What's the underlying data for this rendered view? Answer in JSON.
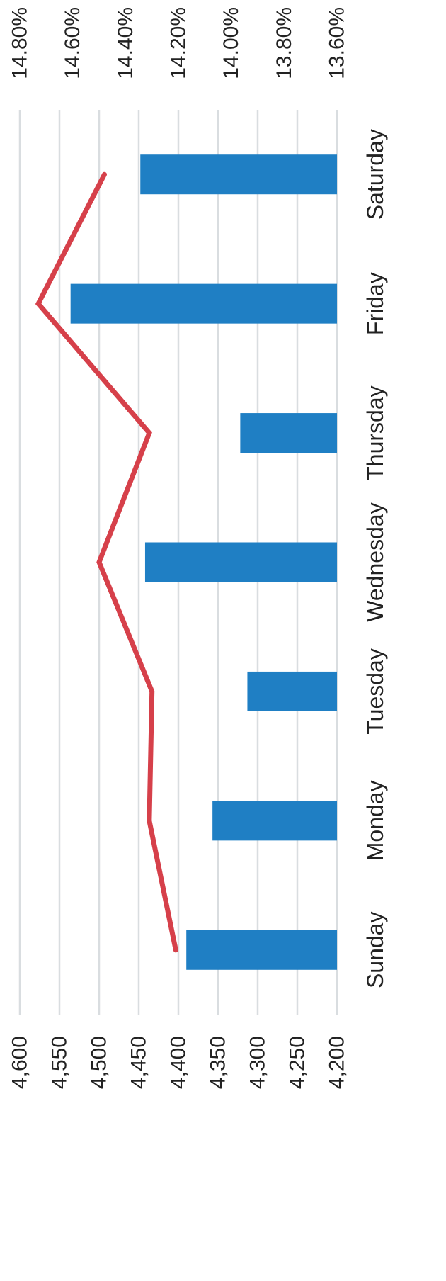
{
  "chart_data": {
    "type": "bar",
    "orientation": "rotated-90-clockwise",
    "categories": [
      "Sunday",
      "Monday",
      "Tuesday",
      "Wednesday",
      "Thursday",
      "Friday",
      "Saturday"
    ],
    "series": [
      {
        "kind": "bar",
        "axis": "primary",
        "color": "#1f7fc4",
        "values": [
          4390,
          4357,
          4313,
          4442,
          4322,
          4536,
          4448
        ]
      },
      {
        "kind": "line",
        "axis": "secondary",
        "color": "#d6404a",
        "values": [
          14.21,
          14.31,
          14.3,
          14.5,
          14.31,
          14.73,
          14.48
        ]
      }
    ],
    "primary_axis": {
      "ylim": [
        4200,
        4600
      ],
      "ticks": [
        "4,600",
        "4,550",
        "4,500",
        "4,450",
        "4,400",
        "4,350",
        "4,300",
        "4,250",
        "4,200"
      ]
    },
    "secondary_axis": {
      "ylim": [
        13.6,
        14.8
      ],
      "ticks": [
        "14.80%",
        "14.60%",
        "14.40%",
        "14.20%",
        "14.00%",
        "13.80%",
        "13.60%"
      ]
    },
    "grid": true,
    "gridline_color": "#d9dde0",
    "title": "",
    "xlabel": "",
    "ylabel": ""
  }
}
